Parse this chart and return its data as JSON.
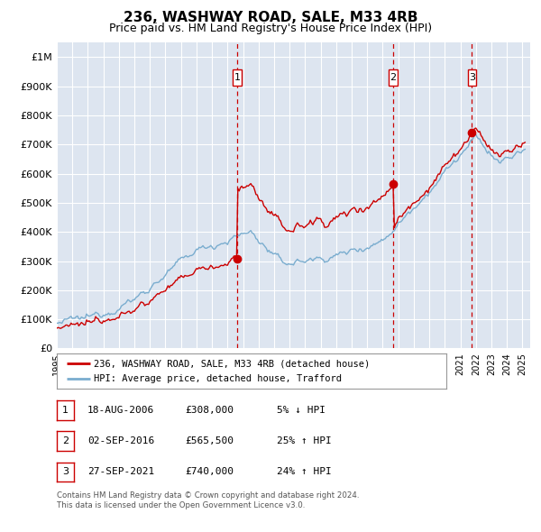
{
  "title": "236, WASHWAY ROAD, SALE, M33 4RB",
  "subtitle": "Price paid vs. HM Land Registry's House Price Index (HPI)",
  "ylabel_ticks": [
    "£0",
    "£100K",
    "£200K",
    "£300K",
    "£400K",
    "£500K",
    "£600K",
    "£700K",
    "£800K",
    "£900K",
    "£1M"
  ],
  "ylim": [
    0,
    1050000
  ],
  "xlim_start": 1995.0,
  "xlim_end": 2025.5,
  "background_color": "#dde5f0",
  "plot_bg_color": "#dde5f0",
  "grid_color": "#ffffff",
  "sale_color": "#cc0000",
  "hpi_color": "#7aadcf",
  "sale_label": "236, WASHWAY ROAD, SALE, M33 4RB (detached house)",
  "hpi_label": "HPI: Average price, detached house, Trafford",
  "t1": 2006.625,
  "p1": 308000,
  "t2": 2016.667,
  "p2": 565500,
  "t3": 2021.75,
  "p3": 740000,
  "transactions": [
    {
      "num": 1,
      "date": "18-AUG-2006",
      "price": "£308,000",
      "pct": "5% ↓ HPI",
      "year": 2006.625
    },
    {
      "num": 2,
      "date": "02-SEP-2016",
      "price": "£565,500",
      "pct": "25% ↑ HPI",
      "year": 2016.667
    },
    {
      "num": 3,
      "date": "27-SEP-2021",
      "price": "£740,000",
      "pct": "24% ↑ HPI",
      "year": 2021.75
    }
  ],
  "footer": "Contains HM Land Registry data © Crown copyright and database right 2024.\nThis data is licensed under the Open Government Licence v3.0.",
  "legend_box_color": "#ffffff",
  "transaction_box_color": "#ffffff",
  "transaction_box_edge": "#cc0000"
}
